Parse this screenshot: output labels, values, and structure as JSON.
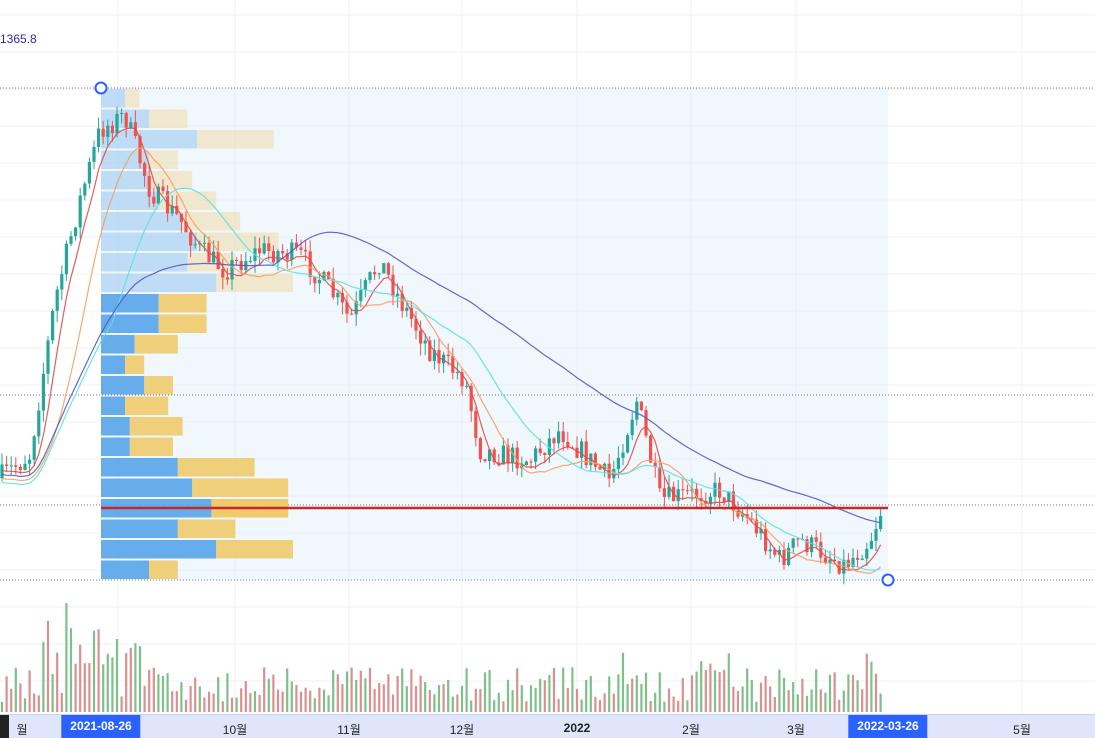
{
  "price_readout": "1365.8",
  "accent_colors": {
    "ma_fast": "#e34a4a",
    "ma_mid": "#f3a162",
    "ma_slow": "#5fe0e0",
    "ma_long": "#5656c8",
    "poc_line": "#c62828",
    "candle_up": "#26a69a",
    "candle_down": "#ef5350",
    "volume_up": "#7fbf8a",
    "volume_down": "#d99090",
    "profile_up": "#4f9fe8",
    "profile_down": "#eec863",
    "range_badge": "#2962ff"
  },
  "time_axis": {
    "labels": [
      "월",
      "10월",
      "11월",
      "12월",
      "2022",
      "2월",
      "3월",
      "5월"
    ],
    "range_start": "2021-08-26",
    "range_end": "2022-03-26"
  },
  "chart_data": {
    "type": "candlestick",
    "title": "",
    "range_selection": {
      "start": "2021-08-26",
      "end": "2022-03-26"
    },
    "moving_averages_shown": 4,
    "candles_count": 190,
    "volume_profile": {
      "rows": 24,
      "point_of_control_row": 20,
      "note_ratio_up_down_per_row": [
        [
          0.05,
          0.03
        ],
        [
          0.1,
          0.08
        ],
        [
          0.2,
          0.16
        ],
        [
          0.1,
          0.06
        ],
        [
          0.1,
          0.09
        ],
        [
          0.12,
          0.12
        ],
        [
          0.17,
          0.12
        ],
        [
          0.2,
          0.17
        ],
        [
          0.18,
          0.1
        ],
        [
          0.24,
          0.16
        ],
        [
          0.12,
          0.1
        ],
        [
          0.12,
          0.1
        ],
        [
          0.07,
          0.09
        ],
        [
          0.05,
          0.04
        ],
        [
          0.09,
          0.06
        ],
        [
          0.05,
          0.09
        ],
        [
          0.06,
          0.11
        ],
        [
          0.06,
          0.09
        ],
        [
          0.16,
          0.16
        ],
        [
          0.19,
          0.2
        ],
        [
          0.23,
          0.16
        ],
        [
          0.16,
          0.12
        ],
        [
          0.24,
          0.16
        ],
        [
          0.1,
          0.06
        ]
      ]
    }
  }
}
